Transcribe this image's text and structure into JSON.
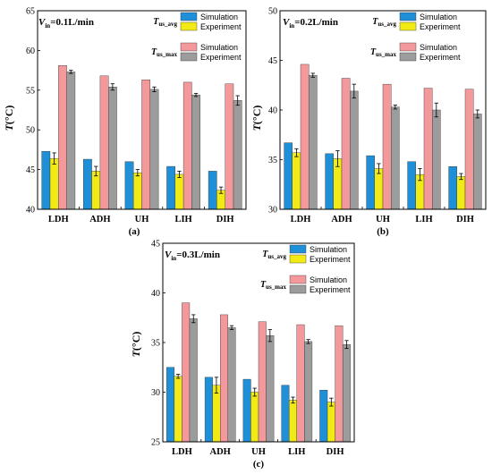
{
  "colors": {
    "sim_avg": "#1f90d8",
    "exp_avg": "#f2ea14",
    "sim_max": "#f4999b",
    "exp_max": "#9c9c9c"
  },
  "legend": {
    "avg_symbol": "T",
    "avg_sub": "us_avg",
    "max_symbol": "T",
    "max_sub": "us_max",
    "simulation": "Simulation",
    "experiment": "Experiment"
  },
  "chart_data": [
    {
      "type": "bar",
      "panel_label": "(a)",
      "condition": {
        "symbol": "V",
        "sub": "in",
        "rest": "=0.1L/min"
      },
      "ylabel_symbol": "T",
      "ylabel_unit": "(°C)",
      "categories": [
        "LDH",
        "ADH",
        "UH",
        "LIH",
        "DIH"
      ],
      "ylim": [
        40,
        65
      ],
      "yticks": [
        40,
        45,
        50,
        55,
        60,
        65
      ],
      "series": [
        {
          "key": "sim_avg",
          "values": [
            47.3,
            46.3,
            46.0,
            45.4,
            44.8
          ],
          "errors": [
            0,
            0,
            0,
            0,
            0
          ]
        },
        {
          "key": "exp_avg",
          "values": [
            46.4,
            44.8,
            44.6,
            44.4,
            42.4
          ],
          "errors": [
            0.7,
            0.6,
            0.4,
            0.4,
            0.4
          ]
        },
        {
          "key": "sim_max",
          "values": [
            58.1,
            56.8,
            56.3,
            56.0,
            55.8
          ],
          "errors": [
            0,
            0,
            0,
            0,
            0
          ]
        },
        {
          "key": "exp_max",
          "values": [
            57.3,
            55.4,
            55.1,
            54.4,
            53.7
          ],
          "errors": [
            0.2,
            0.4,
            0.3,
            0.2,
            0.6
          ]
        }
      ]
    },
    {
      "type": "bar",
      "panel_label": "(b)",
      "condition": {
        "symbol": "V",
        "sub": "in",
        "rest": "=0.2L/min"
      },
      "ylabel_symbol": "T",
      "ylabel_unit": "(°C)",
      "categories": [
        "LDH",
        "ADH",
        "UH",
        "LIH",
        "DIH"
      ],
      "ylim": [
        30,
        50
      ],
      "yticks": [
        30,
        35,
        40,
        45,
        50
      ],
      "series": [
        {
          "key": "sim_avg",
          "values": [
            36.7,
            35.6,
            35.4,
            34.8,
            34.3
          ],
          "errors": [
            0,
            0,
            0,
            0,
            0
          ]
        },
        {
          "key": "exp_avg",
          "values": [
            35.7,
            35.1,
            34.1,
            33.5,
            33.3
          ],
          "errors": [
            0.4,
            0.8,
            0.5,
            0.6,
            0.3
          ]
        },
        {
          "key": "sim_max",
          "values": [
            44.6,
            43.2,
            42.6,
            42.2,
            42.1
          ],
          "errors": [
            0,
            0,
            0,
            0,
            0
          ]
        },
        {
          "key": "exp_max",
          "values": [
            43.5,
            41.9,
            40.3,
            40.0,
            39.6
          ],
          "errors": [
            0.2,
            0.7,
            0.2,
            0.7,
            0.4
          ]
        }
      ]
    },
    {
      "type": "bar",
      "panel_label": "(c)",
      "condition": {
        "symbol": "V",
        "sub": "in",
        "rest": "=0.3L/min"
      },
      "ylabel_symbol": "T",
      "ylabel_unit": "(°C)",
      "categories": [
        "LDH",
        "ADH",
        "UH",
        "LIH",
        "DIH"
      ],
      "ylim": [
        25,
        45
      ],
      "yticks": [
        25,
        30,
        35,
        40,
        45
      ],
      "series": [
        {
          "key": "sim_avg",
          "values": [
            32.5,
            31.5,
            31.3,
            30.7,
            30.2
          ],
          "errors": [
            0,
            0,
            0,
            0,
            0
          ]
        },
        {
          "key": "exp_avg",
          "values": [
            31.6,
            30.7,
            30.0,
            29.2,
            29.0
          ],
          "errors": [
            0.2,
            0.8,
            0.4,
            0.3,
            0.4
          ]
        },
        {
          "key": "sim_max",
          "values": [
            39.0,
            37.8,
            37.1,
            36.8,
            36.7
          ],
          "errors": [
            0,
            0,
            0,
            0,
            0
          ]
        },
        {
          "key": "exp_max",
          "values": [
            37.4,
            36.5,
            35.7,
            35.1,
            34.8
          ],
          "errors": [
            0.4,
            0.2,
            0.6,
            0.2,
            0.4
          ]
        }
      ]
    }
  ]
}
